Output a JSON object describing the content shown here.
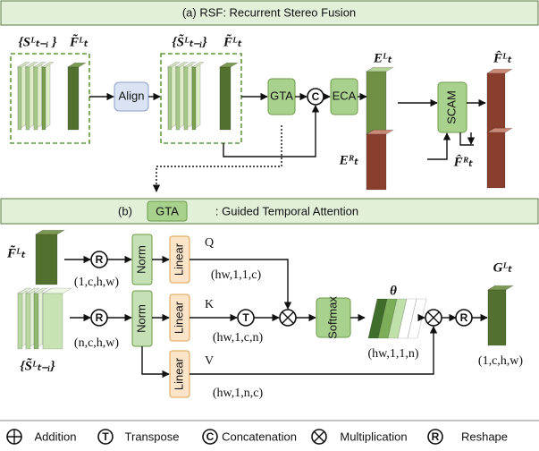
{
  "part_a": {
    "title": "(a) RSF: Recurrent Stereo Fusion",
    "labels": {
      "s_prev": "{Sᴸₜ₋ᵢ }",
      "f_prev": "F̃ᴸₜ",
      "s_aligned": "{S̃ᴸₜ₋ᵢ}",
      "f_aligned": "F̃ᴸₜ",
      "e_left": "Eᴸₜ",
      "e_right": "Eᴿₜ",
      "f_out_left": "F̂ᴸₜ",
      "f_out_right": "F̂ᴿₜ"
    },
    "blocks": {
      "align": "Align",
      "gta": "GTA",
      "eca": "ECA",
      "scam": "SCAM"
    }
  },
  "part_b": {
    "title_prefix": "(b)",
    "title_block": "GTA",
    "title_suffix": ": Guided Temporal Attention",
    "labels": {
      "f_in": "F̃ᴸₜ",
      "s_in": "{S̃ᴸₜ₋ᵢ}",
      "out": "Gᴸₜ",
      "theta": "θ"
    },
    "blocks": {
      "norm": "Norm",
      "linear": "Linear",
      "softmax": "Softmax"
    },
    "qkv": [
      "Q",
      "K",
      "V"
    ],
    "shapes": {
      "f_in": "(1,c,h,w)",
      "s_in": "(n,c,h,w)",
      "q": "(hw,1,1,c)",
      "k": "(hw,1,c,n)",
      "v": "(hw,1,n,c)",
      "theta": "(hw,1,1,n)",
      "out": "(1,c,h,w)"
    }
  },
  "symbols": {
    "transpose": "T",
    "concat": "C",
    "reshape": "R"
  },
  "legend": [
    {
      "label": "Addition"
    },
    {
      "symbol": "T",
      "label": "Transpose"
    },
    {
      "symbol": "C",
      "label": "Concatenation"
    },
    {
      "label": "Multiplication"
    },
    {
      "symbol": "R",
      "label": "Reshape"
    }
  ]
}
